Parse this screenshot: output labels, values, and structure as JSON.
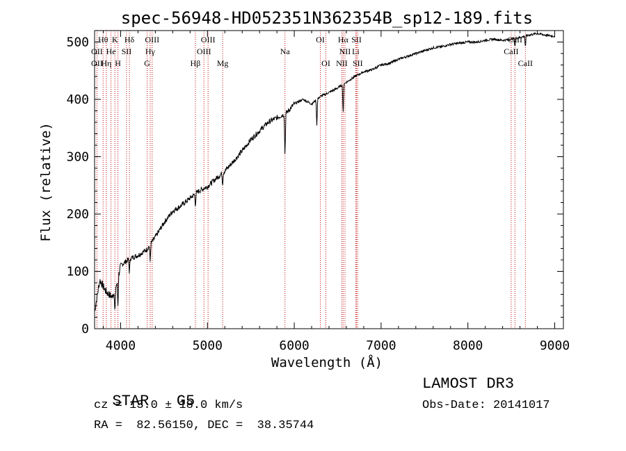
{
  "colors": {
    "line_marker": "#c00000",
    "spectrum": "#000000",
    "axes": "#000000"
  },
  "chart_data": {
    "type": "line",
    "title": "spec-56948-HD052351N362354B_sp12-189.fits",
    "xlabel": "Wavelength (Å)",
    "ylabel": "Flux (relative)",
    "xlim": [
      3700,
      9100
    ],
    "ylim": [
      0,
      520
    ],
    "x_ticks": [
      4000,
      5000,
      6000,
      7000,
      8000,
      9000
    ],
    "x_tick_labels": [
      "4000",
      "5000",
      "6000",
      "7000",
      "8000",
      "9000"
    ],
    "y_ticks": [
      0,
      100,
      200,
      300,
      400,
      500
    ],
    "y_tick_labels": [
      "0",
      "100",
      "200",
      "300",
      "400",
      "500"
    ],
    "spectrum_anchor_points": [
      [
        3700,
        30
      ],
      [
        3760,
        85
      ],
      [
        3830,
        65
      ],
      [
        3900,
        55
      ],
      [
        3960,
        80
      ],
      [
        4000,
        110
      ],
      [
        4100,
        122
      ],
      [
        4200,
        128
      ],
      [
        4300,
        138
      ],
      [
        4400,
        160
      ],
      [
        4500,
        185
      ],
      [
        4600,
        205
      ],
      [
        4700,
        215
      ],
      [
        4800,
        228
      ],
      [
        4900,
        240
      ],
      [
        5000,
        248
      ],
      [
        5100,
        262
      ],
      [
        5200,
        275
      ],
      [
        5300,
        292
      ],
      [
        5400,
        310
      ],
      [
        5500,
        330
      ],
      [
        5600,
        345
      ],
      [
        5700,
        360
      ],
      [
        5800,
        368
      ],
      [
        5900,
        375
      ],
      [
        6000,
        392
      ],
      [
        6100,
        400
      ],
      [
        6200,
        392
      ],
      [
        6300,
        405
      ],
      [
        6400,
        412
      ],
      [
        6500,
        420
      ],
      [
        6600,
        430
      ],
      [
        6700,
        440
      ],
      [
        6800,
        448
      ],
      [
        6900,
        452
      ],
      [
        7000,
        460
      ],
      [
        7100,
        463
      ],
      [
        7200,
        470
      ],
      [
        7300,
        475
      ],
      [
        7400,
        480
      ],
      [
        7500,
        485
      ],
      [
        7600,
        490
      ],
      [
        7700,
        492
      ],
      [
        7800,
        496
      ],
      [
        7900,
        498
      ],
      [
        8000,
        500
      ],
      [
        8100,
        500
      ],
      [
        8200,
        503
      ],
      [
        8300,
        505
      ],
      [
        8400,
        503
      ],
      [
        8500,
        505
      ],
      [
        8600,
        508
      ],
      [
        8700,
        512
      ],
      [
        8800,
        515
      ],
      [
        8900,
        512
      ],
      [
        9000,
        510
      ]
    ],
    "absorption_dips": [
      {
        "x": 3934,
        "depth": 45
      },
      {
        "x": 3969,
        "depth": 50
      },
      {
        "x": 4101,
        "depth": 25
      },
      {
        "x": 4340,
        "depth": 30
      },
      {
        "x": 4861,
        "depth": 20
      },
      {
        "x": 5175,
        "depth": 20
      },
      {
        "x": 5893,
        "depth": 75
      },
      {
        "x": 6260,
        "depth": 45
      },
      {
        "x": 6563,
        "depth": 55
      },
      {
        "x": 8542,
        "depth": 15
      },
      {
        "x": 8662,
        "depth": 20
      }
    ],
    "line_markers": [
      {
        "label": "Hθ",
        "x": 3798,
        "row": 0
      },
      {
        "label": "K",
        "x": 3934,
        "row": 0
      },
      {
        "label": "Hδ",
        "x": 4101,
        "row": 0
      },
      {
        "label": "OIII",
        "x": 4363,
        "row": 0
      },
      {
        "label": "OIII",
        "x": 5007,
        "row": 0
      },
      {
        "label": "OI",
        "x": 6300,
        "row": 0
      },
      {
        "label": "Hα",
        "x": 6563,
        "row": 0
      },
      {
        "label": "SII",
        "x": 6717,
        "row": 0
      },
      {
        "label": "CaII",
        "x": 8542,
        "row": 0
      },
      {
        "label": "OII",
        "x": 3727,
        "row": 1
      },
      {
        "label": "He",
        "x": 3889,
        "row": 1
      },
      {
        "label": "SII",
        "x": 4068,
        "row": 1
      },
      {
        "label": "Hγ",
        "x": 4340,
        "row": 1
      },
      {
        "label": "OIII",
        "x": 4959,
        "row": 1
      },
      {
        "label": "Na",
        "x": 5893,
        "row": 1
      },
      {
        "label": "NII",
        "x": 6584,
        "row": 1
      },
      {
        "label": "Li",
        "x": 6708,
        "row": 1
      },
      {
        "label": "CaII",
        "x": 8498,
        "row": 1
      },
      {
        "label": "OII",
        "x": 3727,
        "row": 2
      },
      {
        "label": "Hη",
        "x": 3835,
        "row": 2
      },
      {
        "label": "H",
        "x": 3969,
        "row": 2
      },
      {
        "label": "G",
        "x": 4305,
        "row": 2
      },
      {
        "label": "Hβ",
        "x": 4861,
        "row": 2
      },
      {
        "label": "Mg",
        "x": 5175,
        "row": 2
      },
      {
        "label": "OI",
        "x": 6364,
        "row": 2
      },
      {
        "label": "NII",
        "x": 6548,
        "row": 2
      },
      {
        "label": "SII",
        "x": 6731,
        "row": 2
      },
      {
        "label": "CaII",
        "x": 8662,
        "row": 2
      }
    ]
  },
  "info": {
    "object_class": "STAR",
    "subclass": "G5",
    "survey": "LAMOST DR3",
    "redshift_text": "cz = 13.0 ± 18.0 km/s",
    "obs_date_text": "Obs-Date: 20141017",
    "coords_text": "RA =  82.56150, DEC =  38.35744"
  }
}
